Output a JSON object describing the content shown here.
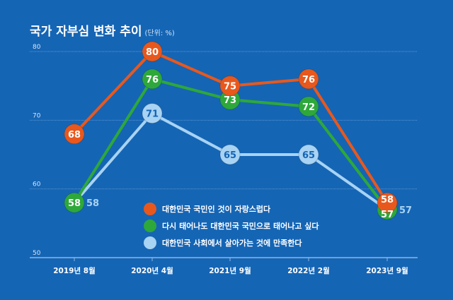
{
  "chart_data": {
    "type": "line",
    "title": "국가 자부심 변화 추이",
    "unit_note": "(단위: %)",
    "categories": [
      "2019년 8월",
      "2020년 4월",
      "2021년 9월",
      "2022년 2월",
      "2023년 9월"
    ],
    "ylim": [
      50,
      80
    ],
    "yticks": [
      50,
      60,
      70,
      80
    ],
    "grid": true,
    "legend": "center",
    "series": [
      {
        "name": "대한민국 국민인 것이 자랑스럽다",
        "color": "#e8581c",
        "values": [
          68,
          80,
          75,
          76,
          58
        ]
      },
      {
        "name": "다시 태어나도 대한민국 국민으로 태어나고 싶다",
        "color": "#2ea83a",
        "values": [
          58,
          76,
          73,
          72,
          57
        ]
      },
      {
        "name": "대한민국 사회에서 살아가는 것에 만족한다",
        "color": "#a8d3f3",
        "values": [
          58,
          71,
          65,
          65,
          57
        ]
      }
    ]
  },
  "colors": {
    "background": "#1565b5",
    "grid": "#5e97d2"
  }
}
